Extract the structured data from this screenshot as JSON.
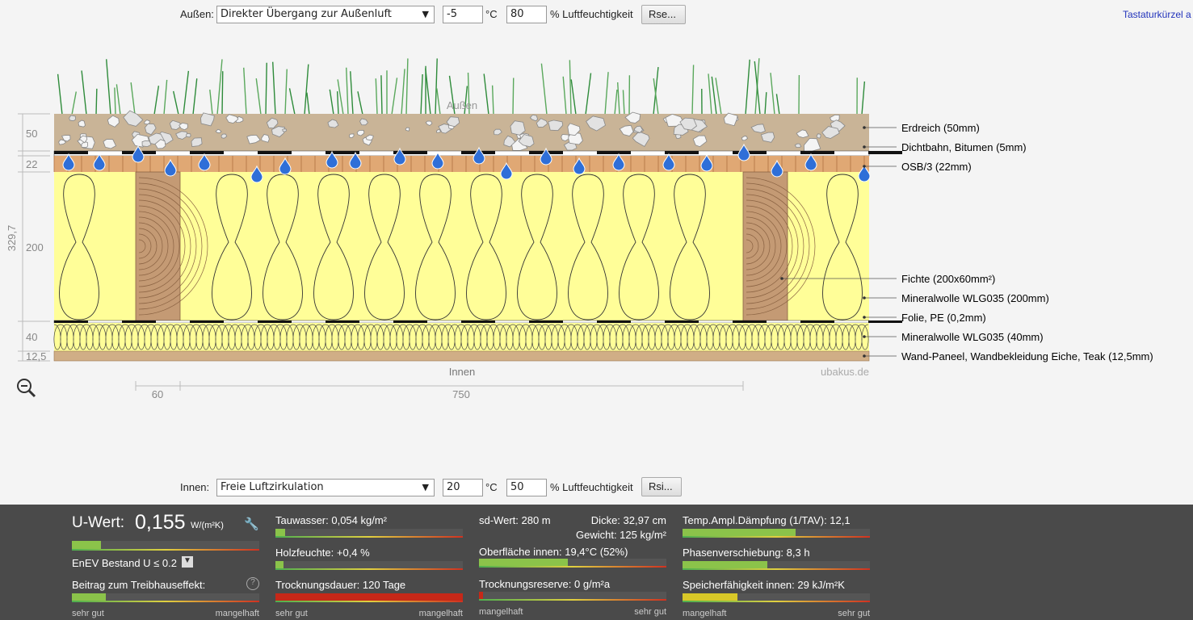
{
  "outside_controls": {
    "label": "Außen:",
    "select": "Direkter Übergang zur Außenluft",
    "temperature": "-5",
    "temperature_unit": "°C",
    "humidity": "80",
    "humidity_unit": "% Luftfeuchtigkeit",
    "button": "Rse..."
  },
  "shortcut_link": "Tastaturkürzel a",
  "diagram": {
    "outside": "Außen",
    "inside": "Innen",
    "watermark": "ubakus.de",
    "total_thickness": "329,7",
    "thicknesses": [
      "50",
      "22",
      "200",
      "40",
      "12,5"
    ],
    "widths": [
      "60",
      "750"
    ],
    "layers": [
      "Erdreich (50mm)",
      "Dichtbahn, Bitumen (5mm)",
      "OSB/3 (22mm)",
      "Fichte (200x60mm²)",
      "Mineralwolle WLG035 (200mm)",
      "Folie, PE (0,2mm)",
      "Mineralwolle WLG035 (40mm)",
      "Wand-Paneel, Wandbekleidung Eiche, Teak (12,5mm)"
    ]
  },
  "inside_controls": {
    "label": "Innen:",
    "select": "Freie Luftzirkulation",
    "temperature": "20",
    "temperature_unit": "°C",
    "humidity": "50",
    "humidity_unit": "% Luftfeuchtigkeit",
    "button": "Rsi..."
  },
  "results": {
    "u_label": "U-Wert:",
    "u_value": "0,155",
    "u_unit": "W/(m²K)",
    "enev": "EnEV Bestand U ≤ 0.2",
    "greenhouse": "Beitrag zum Treibhauseffekt:",
    "col1_scale": [
      "sehr gut",
      "mangelhaft"
    ],
    "condensate": "Tauwasser: 0,054 kg/m²",
    "wood_moisture": "Holzfeuchte: +0,4 %",
    "drying_time": "Trocknungsdauer: 120 Tage",
    "col2_scale": [
      "sehr gut",
      "mangelhaft"
    ],
    "sd": "sd-Wert: 280 m",
    "thickness": "Dicke: 32,97 cm",
    "weight": "Gewicht: 125 kg/m²",
    "surface": "Oberfläche innen: 19,4°C (52%)",
    "drying_reserve": "Trocknungsreserve: 0 g/m²a",
    "col3_scale": [
      "mangelhaft",
      "sehr gut"
    ],
    "damping": "Temp.Ampl.Dämpfung (1/TAV): 12,1",
    "phase": "Phasenverschiebung: 8,3 h",
    "storage": "Speicherfähigkeit innen: 29 kJ/m²K",
    "col4_scale": [
      "mangelhaft",
      "sehr gut"
    ]
  }
}
